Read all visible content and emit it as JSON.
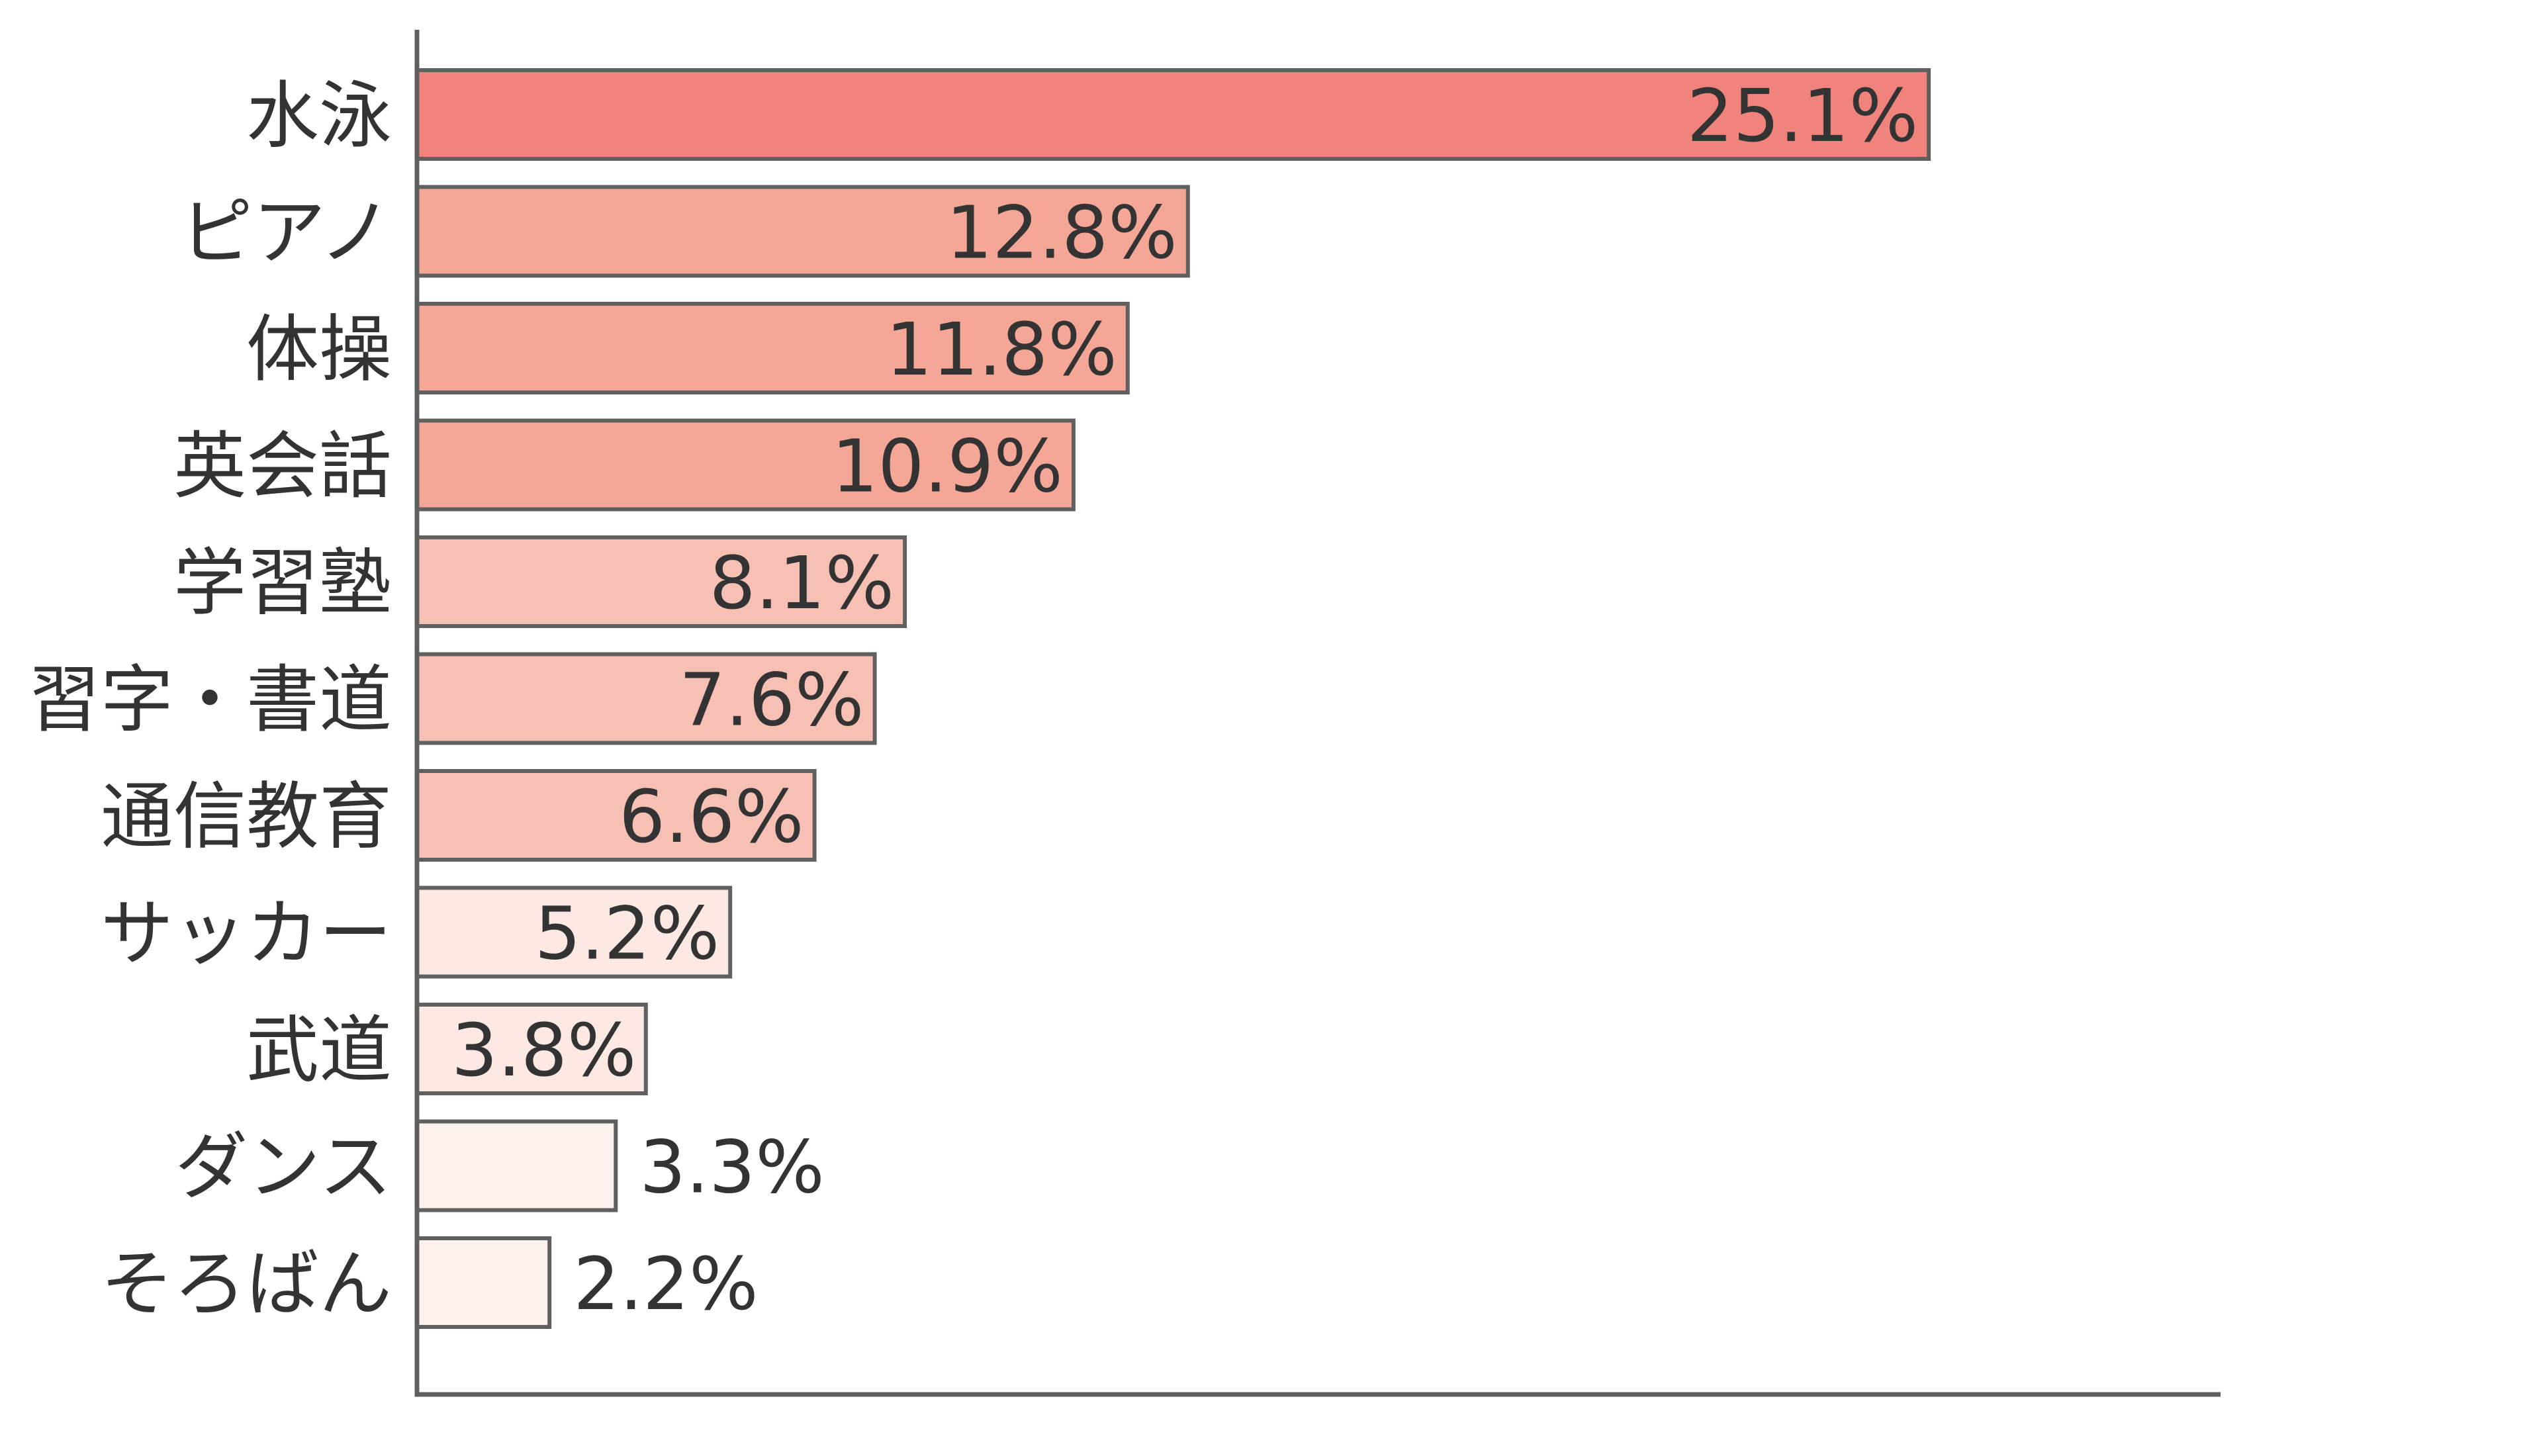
{
  "chart_data": {
    "type": "bar",
    "orientation": "horizontal",
    "categories": [
      "水泳",
      "ピアノ",
      "体操",
      "英会話",
      "学習塾",
      "習字・書道",
      "通信教育",
      "サッカー",
      "武道",
      "ダンス",
      "そろばん"
    ],
    "values": [
      25.1,
      12.8,
      11.8,
      10.9,
      8.1,
      7.6,
      6.6,
      5.2,
      3.8,
      3.3,
      2.2
    ],
    "value_labels": [
      "25.1%",
      "12.8%",
      "11.8%",
      "10.9%",
      "8.1%",
      "7.6%",
      "6.6%",
      "5.2%",
      "3.8%",
      "3.3%",
      "2.2%"
    ],
    "bar_colors": [
      "#f0847c",
      "#f4a697",
      "#f4a697",
      "#f4a697",
      "#f6c0b4",
      "#f6c0b4",
      "#f6c0b4",
      "#fde9e4",
      "#fde9e4",
      "#fef2ef",
      "#fef2ef"
    ],
    "title": "",
    "xlabel": "",
    "ylabel": "",
    "xlim": [
      0,
      30
    ],
    "grid": false,
    "legend": "none"
  }
}
